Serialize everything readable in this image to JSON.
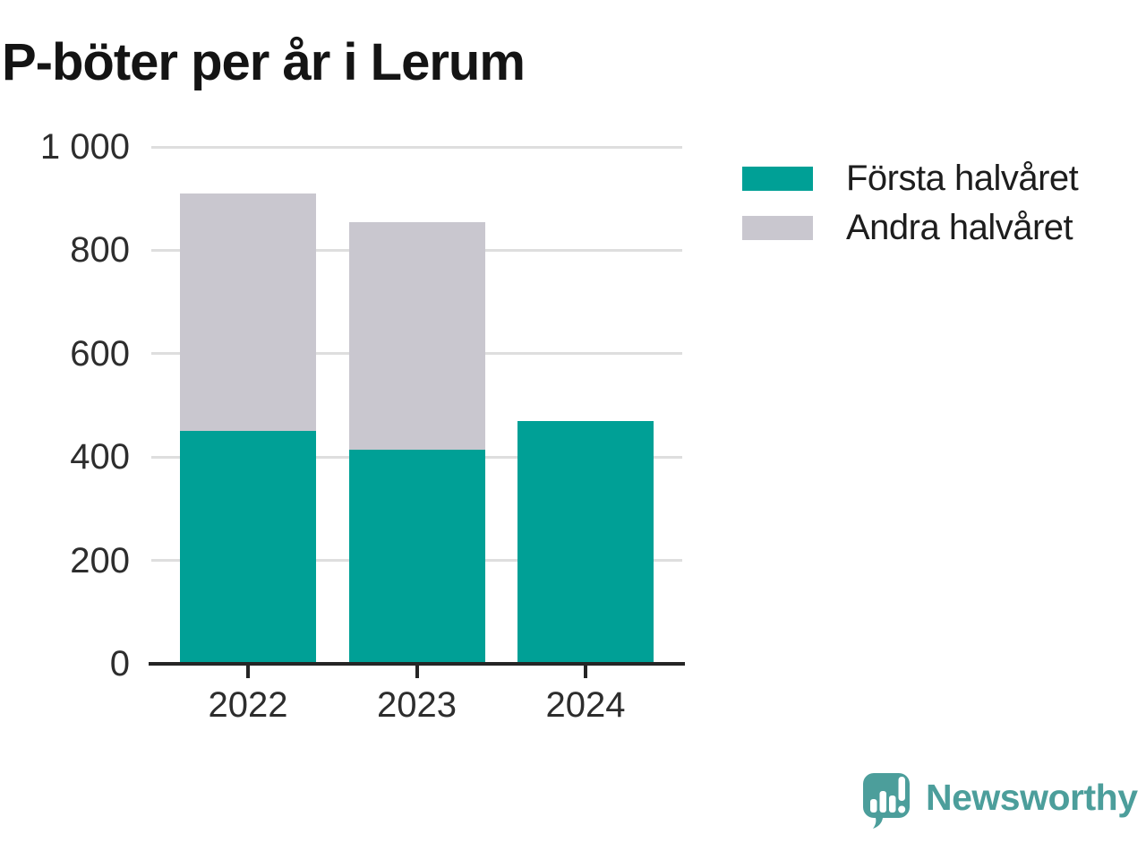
{
  "chart_data": {
    "type": "bar",
    "stacked": true,
    "title": "P-böter per år i Lerum",
    "categories": [
      "2022",
      "2023",
      "2024"
    ],
    "series": [
      {
        "name": "Första halvåret",
        "color": "#00A096",
        "values": [
          450,
          415,
          470
        ]
      },
      {
        "name": "Andra halvåret",
        "color": "#C9C7CF",
        "values": [
          460,
          440,
          0
        ]
      }
    ],
    "totals": [
      910,
      855,
      470
    ],
    "xlabel": "",
    "ylabel": "",
    "ylim": [
      0,
      1000
    ],
    "yticks": [
      0,
      200,
      400,
      600,
      800,
      1000
    ],
    "ytick_labels": [
      "0",
      "200",
      "400",
      "600",
      "800",
      "1 000"
    ],
    "grid": "horizontal",
    "legend_position": "top-right"
  },
  "branding": {
    "logo_text": "Newsworthy",
    "logo_color": "#4C9E9B",
    "logo_icon": "speech-bubble-bar-chart-exclamation"
  },
  "colors": {
    "background": "#ffffff",
    "gridline": "#dedede",
    "axis": "#252525",
    "tick_text": "#2d2d2d",
    "title_text": "#141414"
  }
}
